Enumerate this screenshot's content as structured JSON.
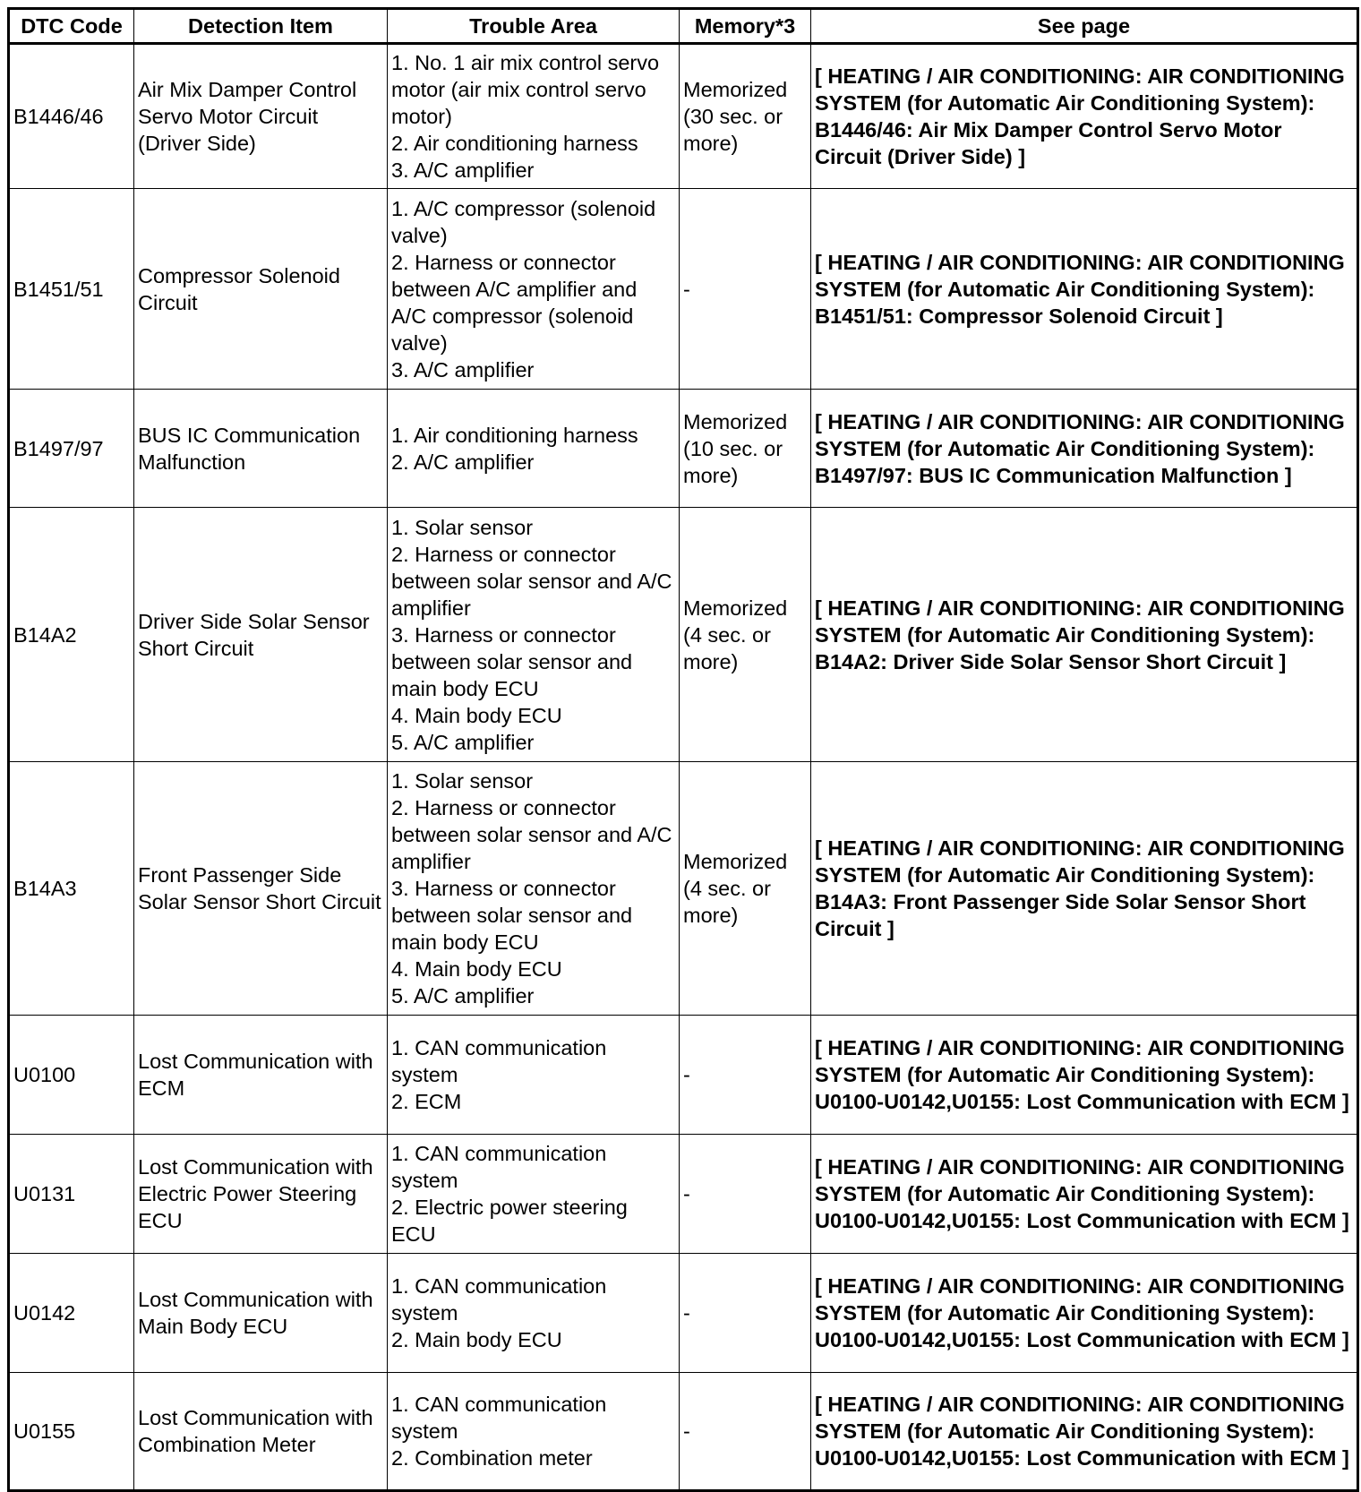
{
  "headers": [
    "DTC Code",
    "Detection Item",
    "Trouble Area",
    "Memory*3",
    "See page"
  ],
  "rows": [
    {
      "code": "B1446/46",
      "item": "Air Mix Damper Control Servo Motor Circuit (Driver Side)",
      "area": [
        "1. No. 1 air mix control servo motor (air mix control servo motor)",
        "2. Air conditioning harness",
        "3. A/C amplifier"
      ],
      "memory": "Memorized (30 sec. or more)",
      "see": "[ HEATING / AIR CONDITIONING: AIR CONDITIONING SYSTEM (for Automatic Air Conditioning System): B1446/46: Air Mix Damper Control Servo Motor Circuit (Driver Side) ]"
    },
    {
      "code": "B1451/51",
      "item": "Compressor Solenoid Circuit",
      "area": [
        "1. A/C compressor (solenoid valve)",
        "2. Harness or connector between A/C amplifier and A/C compressor (solenoid valve)",
        "3. A/C amplifier"
      ],
      "memory": "-",
      "see": "[ HEATING / AIR CONDITIONING: AIR CONDITIONING SYSTEM (for Automatic Air Conditioning System): B1451/51: Compressor Solenoid Circuit ]"
    },
    {
      "code": "B1497/97",
      "item": "BUS IC Communication Malfunction",
      "area": [
        "1. Air conditioning harness",
        "2. A/C amplifier"
      ],
      "memory": "Memorized (10 sec. or more)",
      "see": "[ HEATING / AIR CONDITIONING: AIR CONDITIONING SYSTEM (for Automatic Air Conditioning System): B1497/97: BUS IC Communication Malfunction ]"
    },
    {
      "code": "B14A2",
      "item": "Driver Side Solar Sensor Short Circuit",
      "area": [
        "1. Solar sensor",
        "2. Harness or connector between solar sensor and A/C amplifier",
        "3. Harness or connector between solar sensor and main body ECU",
        "4. Main body ECU",
        "5. A/C amplifier"
      ],
      "memory": "Memorized (4 sec. or more)",
      "see": "[ HEATING / AIR CONDITIONING: AIR CONDITIONING SYSTEM (for Automatic Air Conditioning System): B14A2: Driver Side Solar Sensor Short Circuit ]"
    },
    {
      "code": "B14A3",
      "item": "Front Passenger Side Solar Sensor Short Circuit",
      "area": [
        "1. Solar sensor",
        "2. Harness or connector between solar sensor and A/C amplifier",
        "3. Harness or connector between solar sensor and main body ECU",
        "4. Main body ECU",
        "5. A/C amplifier"
      ],
      "memory": "Memorized (4 sec. or more)",
      "see": "[ HEATING / AIR CONDITIONING: AIR CONDITIONING SYSTEM (for Automatic Air Conditioning System): B14A3: Front Passenger Side Solar Sensor Short Circuit ]"
    },
    {
      "code": "U0100",
      "item": "Lost Communication with ECM",
      "area": [
        "1. CAN communication system",
        "2. ECM"
      ],
      "memory": "-",
      "see": "[ HEATING / AIR CONDITIONING: AIR CONDITIONING SYSTEM (for Automatic Air Conditioning System): U0100-U0142,U0155: Lost Communication with ECM ]"
    },
    {
      "code": "U0131",
      "item": "Lost Communication with Electric Power Steering ECU",
      "area": [
        "1. CAN communication system",
        "2. Electric power steering ECU"
      ],
      "memory": "-",
      "see": "[ HEATING / AIR CONDITIONING: AIR CONDITIONING SYSTEM (for Automatic Air Conditioning System): U0100-U0142,U0155: Lost Communication with ECM ]"
    },
    {
      "code": "U0142",
      "item": "Lost Communication with Main Body ECU",
      "area": [
        "1. CAN communication system",
        "2. Main body ECU"
      ],
      "memory": "-",
      "see": "[ HEATING / AIR CONDITIONING: AIR CONDITIONING SYSTEM (for Automatic Air Conditioning System): U0100-U0142,U0155: Lost Communication with ECM ]"
    },
    {
      "code": "U0155",
      "item": "Lost Communication with Combination Meter",
      "area": [
        "1. CAN communication system",
        "2. Combination meter"
      ],
      "memory": "-",
      "see": "[ HEATING / AIR CONDITIONING: AIR CONDITIONING SYSTEM (for Automatic Air Conditioning System): U0100-U0142,U0155: Lost Communication with ECM ]"
    }
  ]
}
